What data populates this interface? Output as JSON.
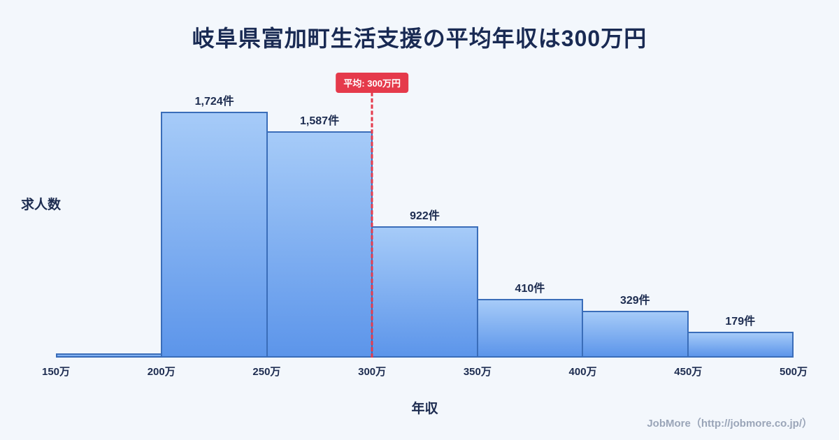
{
  "page": {
    "footer": "JobMore（http://jobmore.co.jp/）"
  },
  "chart_data": {
    "type": "bar",
    "title": "岐阜県富加町生活支援の平均年収は300万円",
    "xlabel": "年収",
    "ylabel": "求人数",
    "bin_edges": [
      "150万",
      "200万",
      "250万",
      "300万",
      "350万",
      "400万",
      "450万",
      "500万"
    ],
    "values": [
      30,
      1724,
      1587,
      922,
      410,
      329,
      179
    ],
    "bar_labels": [
      "",
      "1,724件",
      "1,587件",
      "922件",
      "410件",
      "329件",
      "179件"
    ],
    "average": {
      "label": "平均: 300万円",
      "x": "300万",
      "boundary_index": 3
    },
    "ylim": [
      0,
      1900
    ],
    "grid": false,
    "legend": false
  },
  "colors": {
    "background": "#f3f7fc",
    "title_text": "#192a53",
    "axis_text": "#1d2c50",
    "bar_top": "#a6cbf8",
    "bar_bottom": "#5c95ea",
    "bar_border": "#3a6db9",
    "average_line": "#e53a4b",
    "badge_bg": "#e53a4b",
    "badge_text": "#ffffff",
    "footer_text": "#9aa5b8"
  }
}
